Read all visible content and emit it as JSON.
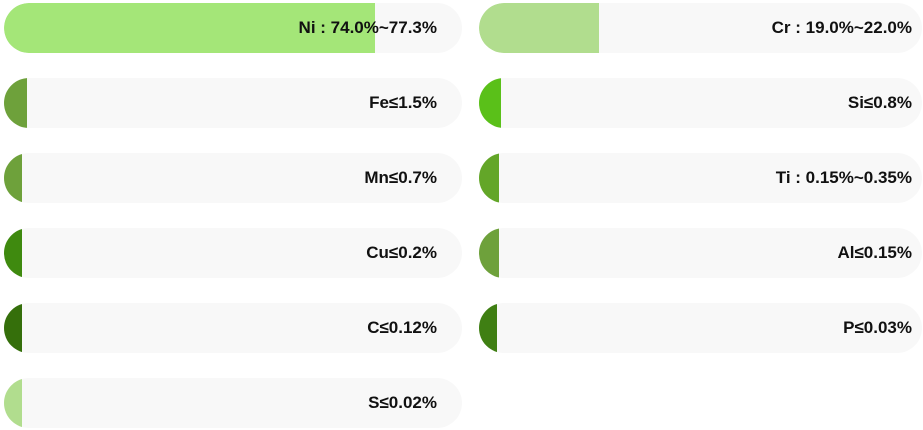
{
  "composition": [
    {
      "label": "Ni : 74.0%~77.3%",
      "fill": 0.81,
      "color": "#a4e678"
    },
    {
      "label": "Cr : 19.0%~22.0%",
      "fill": 0.27,
      "color": "#b1dd8e"
    },
    {
      "label": "Fe≤1.5%",
      "fill": 0.05,
      "color": "#6ea13b"
    },
    {
      "label": "Si≤0.8%",
      "fill": 0.05,
      "color": "#5ac019"
    },
    {
      "label": "Mn≤0.7%",
      "fill": 0.04,
      "color": "#6ea13b"
    },
    {
      "label": "Ti : 0.15%~0.35%",
      "fill": 0.045,
      "color": "#63a628"
    },
    {
      "label": "Cu≤0.2%",
      "fill": 0.04,
      "color": "#3f8a0f"
    },
    {
      "label": "Al≤0.15%",
      "fill": 0.045,
      "color": "#6ea13b"
    },
    {
      "label": "C≤0.12%",
      "fill": 0.04,
      "color": "#356f0b"
    },
    {
      "label": "P≤0.03%",
      "fill": 0.04,
      "color": "#3f7f13"
    },
    {
      "label": "S≤0.02%",
      "fill": 0.04,
      "color": "#b1dd8e"
    }
  ]
}
